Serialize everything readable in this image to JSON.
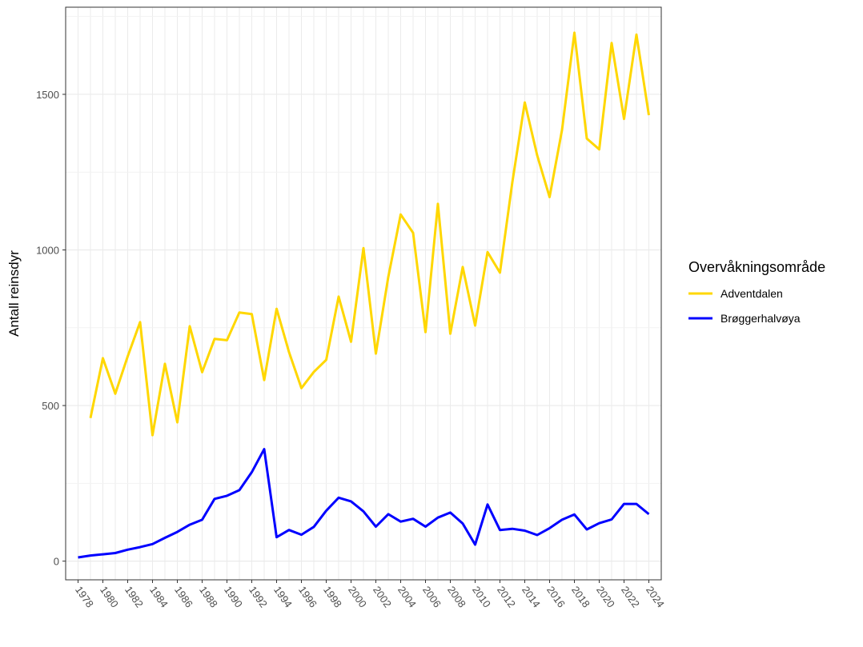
{
  "chart_data": {
    "type": "line",
    "title": "",
    "xlabel": "",
    "ylabel": "Antall reinsdyr",
    "xlim": [
      1977,
      2025
    ],
    "ylim": [
      -60,
      1780
    ],
    "x_ticks": [
      1978,
      1980,
      1982,
      1984,
      1986,
      1988,
      1990,
      1992,
      1994,
      1996,
      1998,
      2000,
      2002,
      2004,
      2006,
      2008,
      2010,
      2012,
      2014,
      2016,
      2018,
      2020,
      2022,
      2024
    ],
    "x_tick_labels": [
      "1978",
      "1980",
      "1982",
      "1984",
      "1986",
      "1988",
      "1990",
      "1992",
      "1994",
      "1996",
      "1998",
      "2000",
      "2002",
      "2004",
      "2006",
      "2008",
      "2010",
      "2012",
      "2014",
      "2016",
      "2018",
      "2020",
      "2022",
      "2024"
    ],
    "y_ticks": [
      0,
      500,
      1000,
      1500
    ],
    "y_tick_labels": [
      "0",
      "500",
      "1000",
      "1500"
    ],
    "grid": true,
    "legend_position": "right",
    "legend_title": "Overvåkningsområde",
    "series": [
      {
        "name": "Adventdalen",
        "color": "#FFD700",
        "x": [
          1979,
          1980,
          1981,
          1982,
          1983,
          1984,
          1985,
          1986,
          1987,
          1988,
          1989,
          1990,
          1991,
          1992,
          1993,
          1994,
          1995,
          1996,
          1997,
          1998,
          1999,
          2000,
          2001,
          2002,
          2003,
          2004,
          2005,
          2006,
          2007,
          2008,
          2009,
          2010,
          2011,
          2012,
          2013,
          2014,
          2015,
          2016,
          2017,
          2018,
          2019,
          2020,
          2021,
          2022,
          2023,
          2024
        ],
        "values": [
          460,
          652,
          538,
          658,
          768,
          405,
          634,
          446,
          755,
          607,
          714,
          710,
          799,
          794,
          582,
          811,
          672,
          556,
          608,
          647,
          850,
          705,
          1006,
          667,
          913,
          1114,
          1055,
          736,
          1148,
          731,
          945,
          757,
          993,
          927,
          1218,
          1474,
          1304,
          1170,
          1385,
          1698,
          1358,
          1323,
          1665,
          1421,
          1692,
          1433
        ]
      },
      {
        "name": "Brøggerhalvøya",
        "color": "#0000FF",
        "x": [
          1978,
          1979,
          1980,
          1981,
          1982,
          1983,
          1984,
          1985,
          1986,
          1987,
          1988,
          1989,
          1990,
          1991,
          1992,
          1993,
          1994,
          1995,
          1996,
          1997,
          1998,
          1999,
          2000,
          2001,
          2002,
          2003,
          2004,
          2005,
          2006,
          2007,
          2008,
          2009,
          2010,
          2011,
          2012,
          2013,
          2014,
          2015,
          2016,
          2017,
          2018,
          2019,
          2020,
          2021,
          2022,
          2023,
          2024
        ],
        "values": [
          12,
          18,
          22,
          26,
          37,
          45,
          55,
          75,
          94,
          117,
          133,
          200,
          210,
          228,
          286,
          360,
          77,
          100,
          85,
          110,
          162,
          204,
          192,
          160,
          111,
          151,
          127,
          136,
          111,
          140,
          156,
          121,
          53,
          182,
          100,
          104,
          98,
          84,
          106,
          133,
          150,
          102,
          122,
          134,
          184,
          184,
          151
        ]
      }
    ]
  }
}
